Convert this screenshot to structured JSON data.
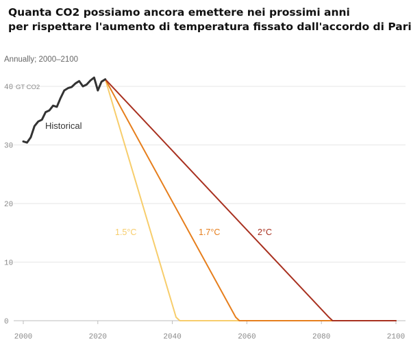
{
  "title_lines": [
    "Quanta CO2 possiamo ancora emettere nei prossimi anni",
    "per rispettare l'aumento di temperatura fissato dall'accordo di Parigi."
  ],
  "subtitle": "Annually; 2000–2100",
  "chart_data": {
    "type": "line",
    "y_unit": "GT CO2",
    "xlim": [
      2000,
      2100
    ],
    "ylim": [
      0,
      40
    ],
    "x_ticks": [
      2000,
      2020,
      2040,
      2060,
      2080,
      2100
    ],
    "y_ticks": [
      0,
      10,
      20,
      30,
      40
    ],
    "grid": true,
    "series": [
      {
        "name": "Historical",
        "color": "#333333",
        "x": [
          2000,
          2001,
          2002,
          2003,
          2004,
          2005,
          2006,
          2007,
          2008,
          2009,
          2010,
          2011,
          2012,
          2013,
          2014,
          2015,
          2016,
          2017,
          2018,
          2019,
          2020,
          2021,
          2022
        ],
        "y": [
          30.6,
          30.4,
          31.3,
          33.2,
          34.0,
          34.3,
          35.6,
          35.9,
          36.7,
          36.5,
          38.0,
          39.3,
          39.7,
          39.9,
          40.5,
          40.9,
          40.0,
          40.3,
          41.0,
          41.5,
          39.3,
          40.8,
          41.2
        ]
      },
      {
        "name": "1.5°C",
        "color": "#f7cd6b",
        "x": [
          2022,
          2041,
          2042,
          2100
        ],
        "y": [
          41.2,
          0.6,
          0,
          0
        ]
      },
      {
        "name": "1.7°C",
        "color": "#e67e1c",
        "x": [
          2022,
          2057,
          2058,
          2100
        ],
        "y": [
          41.2,
          0.6,
          0,
          0
        ]
      },
      {
        "name": "2°C",
        "color": "#a8301f",
        "x": [
          2022,
          2082,
          2083,
          2100
        ],
        "y": [
          41.2,
          0.6,
          0,
          0
        ]
      }
    ]
  }
}
